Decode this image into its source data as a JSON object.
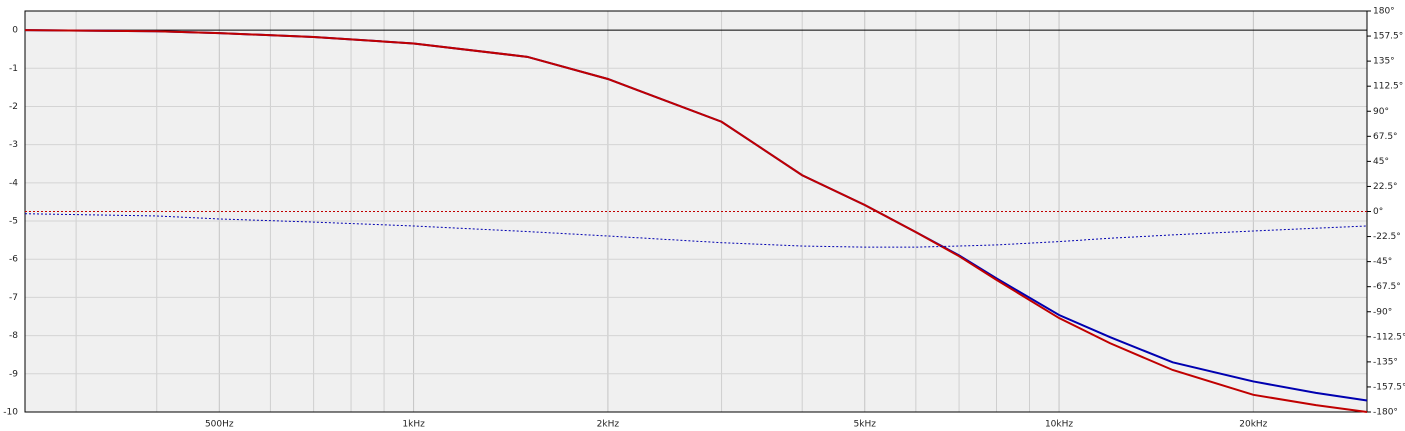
{
  "chart_data": {
    "type": "line",
    "x": [
      250,
      400,
      500,
      700,
      1000,
      1500,
      2000,
      3000,
      4000,
      5000,
      6000,
      7000,
      8000,
      10000,
      12000,
      15000,
      20000,
      25000,
      30000
    ],
    "xlim": [
      250,
      30000
    ],
    "log_x": true,
    "xticks": [
      {
        "value": 500,
        "label": "500Hz"
      },
      {
        "value": 1000,
        "label": "1kHz"
      },
      {
        "value": 2000,
        "label": "2kHz"
      },
      {
        "value": 5000,
        "label": "5kHz"
      },
      {
        "value": 10000,
        "label": "10kHz"
      },
      {
        "value": 20000,
        "label": "20kHz"
      }
    ],
    "xminor_ticks": [
      300,
      400,
      600,
      700,
      800,
      900,
      3000,
      4000,
      6000,
      7000,
      8000,
      9000,
      30000
    ],
    "ylim": [
      -10,
      0.5
    ],
    "yticks": [
      0,
      -1,
      -2,
      -3,
      -4,
      -5,
      -6,
      -7,
      -8,
      -9,
      -10
    ],
    "y2lim": [
      -180,
      180
    ],
    "y2ticks": [
      {
        "value": 180,
        "label": "180°"
      },
      {
        "value": 157.5,
        "label": "157.5°"
      },
      {
        "value": 135,
        "label": "135°"
      },
      {
        "value": 112.5,
        "label": "112.5°"
      },
      {
        "value": 90,
        "label": "90°"
      },
      {
        "value": 67.5,
        "label": "67.5°"
      },
      {
        "value": 45,
        "label": "45°"
      },
      {
        "value": 22.5,
        "label": "22.5°"
      },
      {
        "value": 0,
        "label": "0°"
      },
      {
        "value": -22.5,
        "label": "-22.5°"
      },
      {
        "value": -45,
        "label": "-45°"
      },
      {
        "value": -67.5,
        "label": "-67.5°"
      },
      {
        "value": -90,
        "label": "-90°"
      },
      {
        "value": -112.5,
        "label": "-112.5°"
      },
      {
        "value": -135,
        "label": "-135°"
      },
      {
        "value": -157.5,
        "label": "-157.5°"
      },
      {
        "value": -180,
        "label": "-180°"
      }
    ],
    "grid": true,
    "series": [
      {
        "color": "#0000b0",
        "style": "solid",
        "values": [
          0,
          -0.03,
          -0.08,
          -0.18,
          -0.35,
          -0.7,
          -1.28,
          -2.4,
          -3.8,
          -4.58,
          -5.29,
          -5.9,
          -6.5,
          -7.46,
          -8.04,
          -8.7,
          -9.2,
          -9.5,
          -9.7
        ]
      },
      {
        "color": "#c00000",
        "style": "solid",
        "values": [
          0,
          -0.03,
          -0.08,
          -0.18,
          -0.35,
          -0.7,
          -1.28,
          -2.4,
          -3.8,
          -4.58,
          -5.29,
          -5.92,
          -6.54,
          -7.54,
          -8.2,
          -8.9,
          -9.55,
          -9.82,
          -10
        ]
      },
      {
        "color": "#0000b0",
        "style": "dotted",
        "axis": "y2",
        "values": [
          -2,
          -4,
          -6.7,
          -9.5,
          -13,
          -18,
          -22,
          -28,
          -31,
          -32,
          -32,
          -31,
          -30,
          -27,
          -24,
          -21,
          -17.5,
          -15,
          -13
        ]
      },
      {
        "color": "#c00000",
        "style": "dotted",
        "axis": "y2",
        "values": [
          0,
          0,
          0,
          0,
          0,
          0,
          0,
          0,
          0,
          0,
          0,
          0,
          0,
          0,
          0,
          0,
          0,
          0,
          0
        ]
      }
    ]
  }
}
